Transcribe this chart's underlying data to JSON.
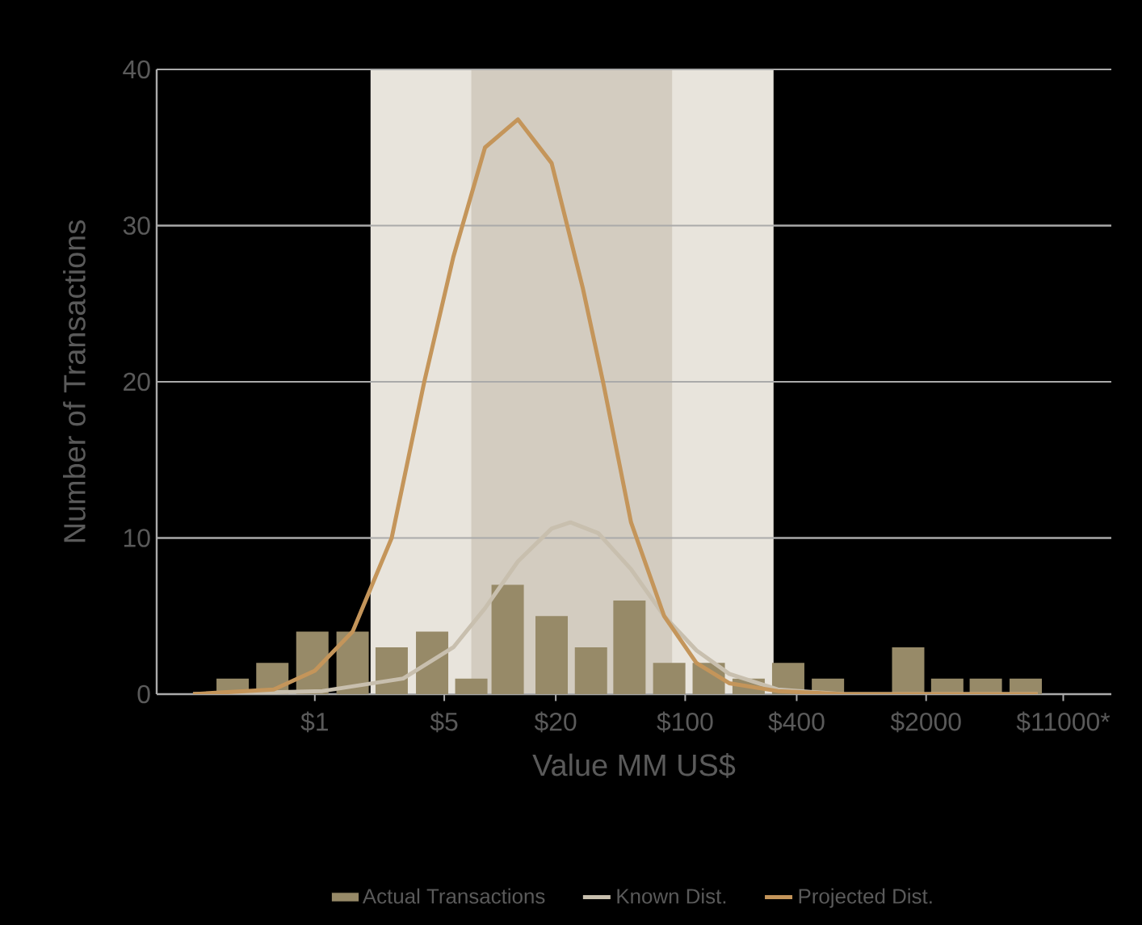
{
  "chart_data": {
    "type": "bar",
    "xlabel": "Value MM US$",
    "ylabel": "Number of Transactions",
    "log": "x",
    "xlim": [
      0.14,
      20000
    ],
    "ylim": [
      0,
      40
    ],
    "xticks": [
      {
        "value": 1,
        "label": "$1"
      },
      {
        "value": 5,
        "label": "$5"
      },
      {
        "value": 20,
        "label": "$20"
      },
      {
        "value": 100,
        "label": "$100"
      },
      {
        "value": 400,
        "label": "$400"
      },
      {
        "value": 2000,
        "label": "$2000"
      },
      {
        "value": 11000,
        "label": "$11000*"
      }
    ],
    "yticks": [
      0,
      10,
      20,
      30,
      40
    ],
    "grid": "y",
    "legend": "bottom",
    "bands": [
      {
        "axis": "x",
        "from": 2.0,
        "to": 300,
        "color": "#e8e4dc"
      },
      {
        "axis": "x",
        "from": 7.0,
        "to": 85,
        "color": "#d3ccc0"
      }
    ],
    "series": [
      {
        "name": "Actual Transactions",
        "color": "#978a68",
        "x": [
          0.36,
          0.59,
          0.97,
          1.6,
          2.6,
          4.3,
          7.0,
          11,
          19,
          31,
          50,
          82,
          134,
          220,
          360,
          590,
          960,
          1600,
          2600,
          4200,
          6900
        ],
        "values": [
          1,
          2,
          4,
          4,
          3,
          4,
          1,
          7,
          5,
          3,
          6,
          2,
          2,
          1,
          2,
          1,
          0,
          3,
          1,
          1,
          1
        ]
      },
      {
        "name": "Known Dist.",
        "type": "line",
        "color": "#c8bfae",
        "x": [
          0.22,
          1.1,
          3.0,
          5.6,
          8.3,
          12.5,
          19,
          24,
          34,
          51,
          77,
          115,
          173,
          316,
          710,
          8000
        ],
        "values": [
          0,
          0.2,
          1,
          3,
          5.5,
          8.5,
          10.6,
          11,
          10.3,
          8,
          5,
          2.8,
          1.3,
          0.3,
          0,
          0
        ]
      },
      {
        "name": "Projected Dist.",
        "type": "line",
        "color": "#c4955a",
        "x": [
          0.22,
          0.6,
          1,
          1.6,
          2.6,
          3.9,
          5.6,
          8.3,
          12.5,
          19,
          28,
          36,
          51,
          77,
          115,
          173,
          316,
          710,
          8000
        ],
        "values": [
          0,
          0.3,
          1.5,
          4,
          10,
          20,
          28,
          35,
          36.8,
          34,
          26,
          20,
          11,
          5,
          2,
          0.7,
          0.2,
          0,
          0
        ]
      }
    ]
  }
}
